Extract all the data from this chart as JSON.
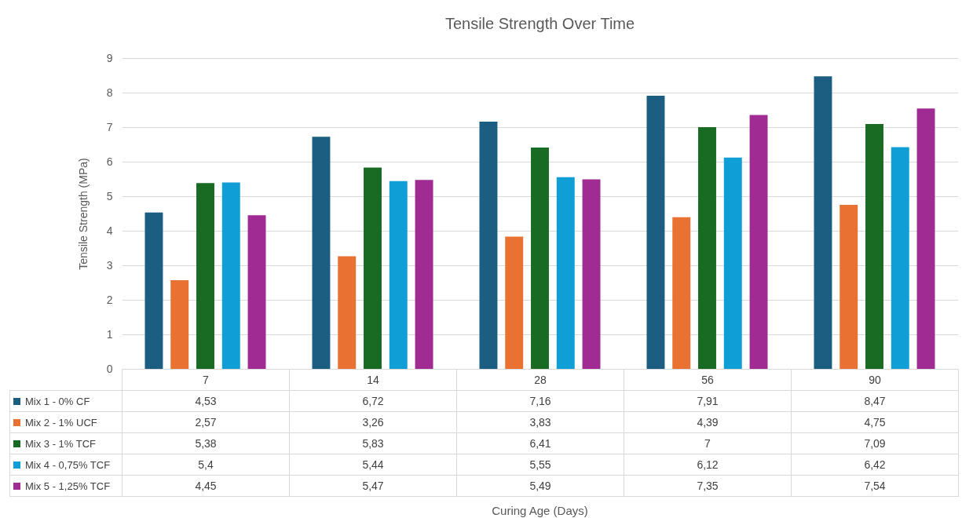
{
  "chart_data": {
    "type": "bar",
    "title": "Tensile Strength Over Time",
    "annotations": [
      "Curing Age (Days)"
    ],
    "ylabel": "Tensile Strength (MPa)",
    "categories": [
      "7",
      "14",
      "28",
      "56",
      "90"
    ],
    "series": [
      {
        "name": "Mix 1 - 0% CF",
        "color": "#1b5e82",
        "values": [
          4.53,
          6.72,
          7.16,
          7.91,
          8.47
        ],
        "value_labels": [
          "4,53",
          "6,72",
          "7,16",
          "7,91",
          "8,47"
        ]
      },
      {
        "name": "Mix 2 - 1% UCF",
        "color": "#e97132",
        "values": [
          2.57,
          3.26,
          3.83,
          4.39,
          4.75
        ],
        "value_labels": [
          "2,57",
          "3,26",
          "3,83",
          "4,39",
          "4,75"
        ]
      },
      {
        "name": "Mix 3 - 1% TCF",
        "color": "#196b24",
        "values": [
          5.38,
          5.83,
          6.41,
          7,
          7.09
        ],
        "value_labels": [
          "5,38",
          "5,83",
          "6,41",
          "7",
          "7,09"
        ]
      },
      {
        "name": "Mix 4 - 0,75% TCF",
        "color": "#0f9ed5",
        "values": [
          5.4,
          5.44,
          5.55,
          6.12,
          6.42
        ],
        "value_labels": [
          "5,4",
          "5,44",
          "5,55",
          "6,12",
          "6,42"
        ]
      },
      {
        "name": "Mix 5 - 1,25% TCF",
        "color": "#a02b93",
        "values": [
          4.45,
          5.47,
          5.49,
          7.35,
          7.54
        ],
        "value_labels": [
          "4,45",
          "5,47",
          "5,49",
          "7,35",
          "7,54"
        ]
      }
    ],
    "ylim": [
      0,
      9
    ],
    "yticks": [
      0,
      1,
      2,
      3,
      4,
      5,
      6,
      7,
      8,
      9
    ],
    "grid": "y",
    "legend": "bottom"
  }
}
